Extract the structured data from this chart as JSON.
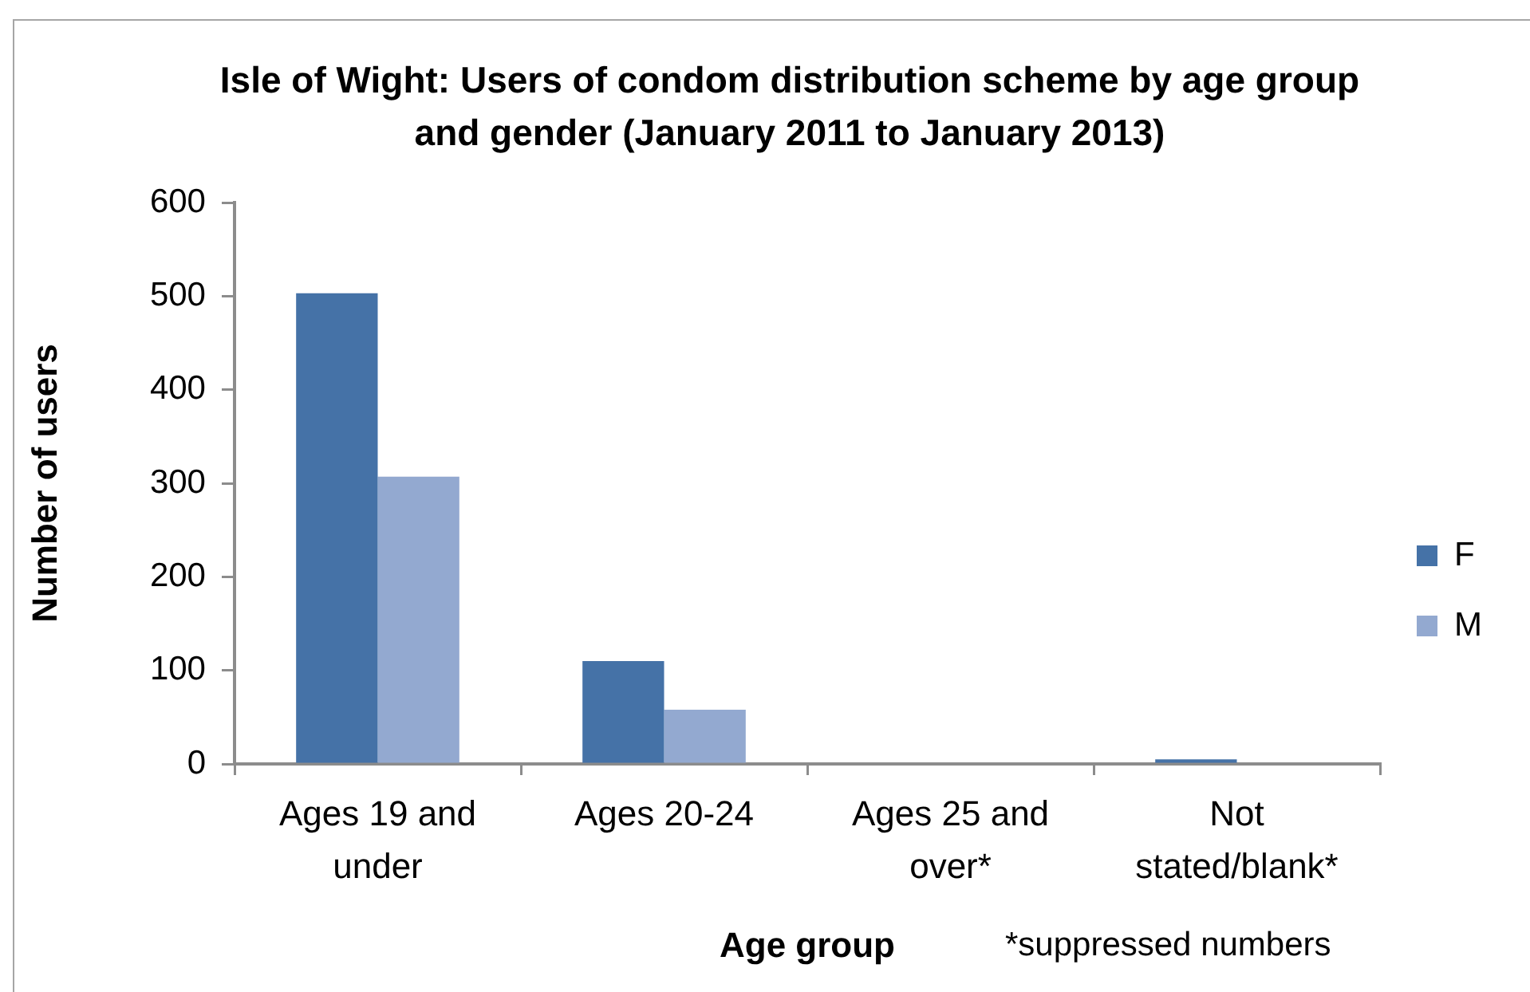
{
  "chart_data": {
    "type": "bar",
    "title": "Isle of Wight: Users of condom distribution scheme by age group and gender (January 2011 to January 2013)",
    "xlabel": "Age group",
    "ylabel": "Number of users",
    "annotations": [
      "*suppressed numbers"
    ],
    "categories": [
      "Ages 19 and under",
      "Ages 20-24",
      "Ages 25 and over*",
      "Not stated/blank*"
    ],
    "series": [
      {
        "name": "F",
        "color": "#4572a7",
        "values": [
          503,
          110,
          null,
          5
        ]
      },
      {
        "name": "M",
        "color": "#93a9d0",
        "values": [
          307,
          58,
          null,
          null
        ]
      }
    ],
    "ylim": [
      0,
      600
    ],
    "yticks": [
      0,
      100,
      200,
      300,
      400,
      500,
      600
    ],
    "grid": false,
    "legend": "right"
  }
}
